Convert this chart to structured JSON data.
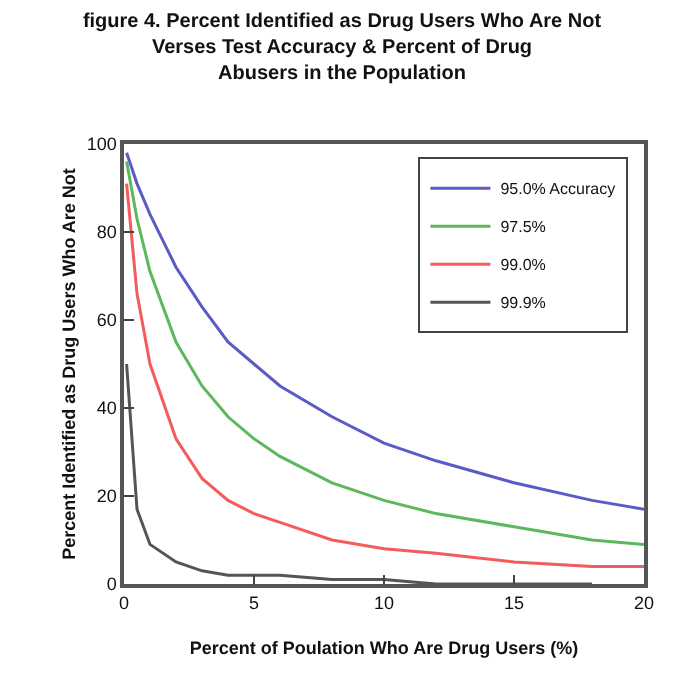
{
  "chart_data": {
    "type": "line",
    "title": "figure 4. Percent Identified as Drug Users Who Are Not\nVerses Test Accuracy & Percent of Drug\nAbusers in the Population",
    "xlabel": "Percent of Poulation Who Are Drug Users (%)",
    "ylabel": "Percent Identified as Drug Users Who Are Not",
    "x": [
      0.1,
      0.5,
      1,
      2,
      3,
      4,
      5,
      6,
      8,
      10,
      12,
      15,
      18,
      20
    ],
    "series": [
      {
        "name": "95.0% Accuracy",
        "color": "#5b5bc8",
        "values": [
          98,
          91,
          84,
          72,
          63,
          55,
          50,
          45,
          38,
          32,
          28,
          23,
          19,
          17
        ]
      },
      {
        "name": "97.5%",
        "color": "#5cb85c",
        "values": [
          96,
          83,
          71,
          55,
          45,
          38,
          33,
          29,
          23,
          19,
          16,
          13,
          10,
          9
        ]
      },
      {
        "name": "99.0%",
        "color": "#f25c5c",
        "values": [
          91,
          66,
          50,
          33,
          24,
          19,
          16,
          14,
          10,
          8,
          7,
          5,
          4,
          4
        ]
      },
      {
        "name": "99.9%",
        "color": "#555555",
        "values": [
          50,
          17,
          9,
          5,
          3,
          2,
          2,
          2,
          1,
          1,
          0,
          0,
          0,
          null
        ]
      }
    ],
    "xlim": [
      0,
      20
    ],
    "xticks": [
      0,
      5,
      10,
      15,
      20
    ],
    "ylim": [
      0,
      100
    ],
    "yticks": [
      0,
      20,
      40,
      60,
      80,
      100
    ],
    "legend": "top right",
    "marker": "none",
    "line_style": "solid"
  }
}
